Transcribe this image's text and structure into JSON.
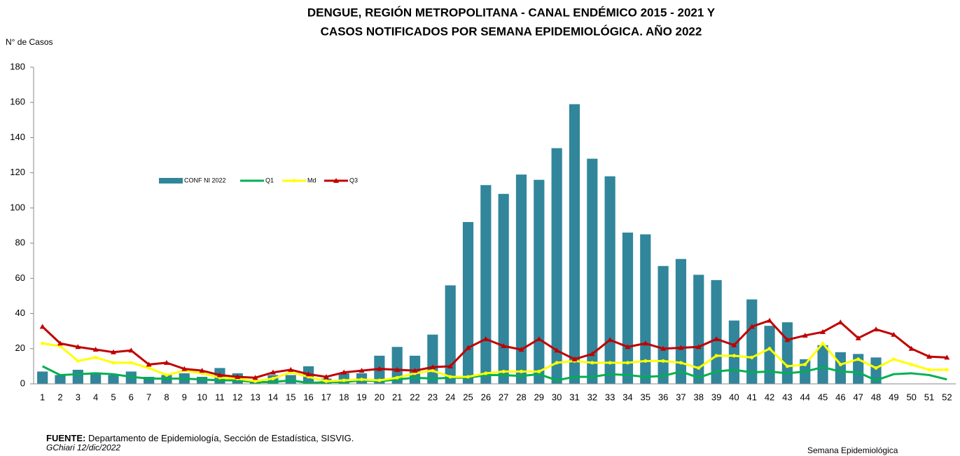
{
  "chart_data": {
    "type": "bar_line",
    "title": [
      "DENGUE, REGIÓN METROPOLITANA - CANAL ENDÉMICO 2015 - 2021 Y",
      "CASOS NOTIFICADOS POR SEMANA EPIDEMIOLÓGICA. AÑO 2022"
    ],
    "y_label": "N° de Casos",
    "x_label": "Semana Epidemiológica",
    "categories": [
      "1",
      "2",
      "3",
      "4",
      "5",
      "6",
      "7",
      "8",
      "9",
      "10",
      "11",
      "12",
      "13",
      "14",
      "15",
      "16",
      "17",
      "18",
      "19",
      "20",
      "21",
      "22",
      "23",
      "24",
      "25",
      "26",
      "27",
      "28",
      "29",
      "30",
      "31",
      "32",
      "33",
      "34",
      "35",
      "36",
      "37",
      "38",
      "39",
      "40",
      "41",
      "42",
      "43",
      "44",
      "45",
      "46",
      "47",
      "48",
      "49",
      "50",
      "51",
      "52"
    ],
    "series": [
      {
        "name": "CONF NI 2022",
        "kind": "bar",
        "color": "#31869b",
        "values": [
          7,
          5,
          8,
          6,
          5,
          7,
          4,
          5,
          6,
          4,
          9,
          6,
          2,
          5,
          5,
          10,
          3,
          6,
          6,
          16,
          21,
          16,
          28,
          56,
          92,
          113,
          108,
          119,
          116,
          134,
          159,
          128,
          118,
          86,
          85,
          67,
          71,
          62,
          59,
          36,
          48,
          33,
          35,
          14,
          22,
          18,
          17,
          15,
          null,
          null,
          null,
          null
        ]
      },
      {
        "name": "Q1",
        "kind": "line",
        "color": "#00b050",
        "marker": "none",
        "values": [
          10,
          5,
          5.5,
          6,
          5.5,
          4,
          3,
          3,
          3,
          2.5,
          2,
          2,
          1,
          1,
          2,
          0.5,
          1,
          1,
          2,
          1.5,
          2.5,
          3.5,
          3,
          3.5,
          3.5,
          5,
          5,
          4.5,
          5.5,
          2,
          4,
          4,
          5.5,
          5,
          4,
          4.5,
          7,
          3.5,
          7,
          8,
          6.5,
          7,
          6,
          7,
          9.5,
          7,
          6.5,
          2,
          5.5,
          6,
          5,
          2.5
        ]
      },
      {
        "name": "Md",
        "kind": "line",
        "color": "#ffff00",
        "marker": "circle",
        "values": [
          23,
          21.5,
          13,
          15,
          12,
          12,
          9,
          5,
          7.5,
          6,
          3.5,
          3,
          1.5,
          3,
          6.5,
          4,
          1.5,
          2,
          2.5,
          2,
          3.5,
          6,
          7.5,
          4,
          4,
          6,
          7,
          7,
          7,
          12,
          13,
          12,
          12,
          12,
          13,
          13,
          12,
          9,
          16,
          16,
          15,
          20,
          10,
          11,
          23,
          11,
          14,
          9,
          14,
          11,
          8,
          8
        ]
      },
      {
        "name": "Q3",
        "kind": "line",
        "color": "#c00000",
        "marker": "triangle",
        "values": [
          32.5,
          23,
          21,
          19.5,
          18,
          19,
          11,
          12,
          8.5,
          7.5,
          5,
          4,
          3.5,
          6.5,
          8,
          5.5,
          4,
          6.5,
          7.5,
          8.5,
          8,
          7.5,
          9.5,
          10,
          20.5,
          25.5,
          21.5,
          19.5,
          25.5,
          19,
          14,
          17,
          25,
          21,
          23,
          20,
          20.5,
          21,
          25.5,
          22,
          32.5,
          36,
          25,
          27.5,
          29.5,
          35,
          26,
          31,
          28,
          20,
          15.5,
          15
        ]
      }
    ],
    "ylim": [
      0,
      180
    ],
    "yticks": [
      0,
      20,
      40,
      60,
      80,
      100,
      120,
      140,
      160,
      180
    ],
    "grid": false
  },
  "footer": {
    "source_label": "FUENTE:",
    "source": "Departamento de Epidemiología, Sección de Estadística, SISVIG.",
    "author": "GChiari 12/dic/2022"
  }
}
